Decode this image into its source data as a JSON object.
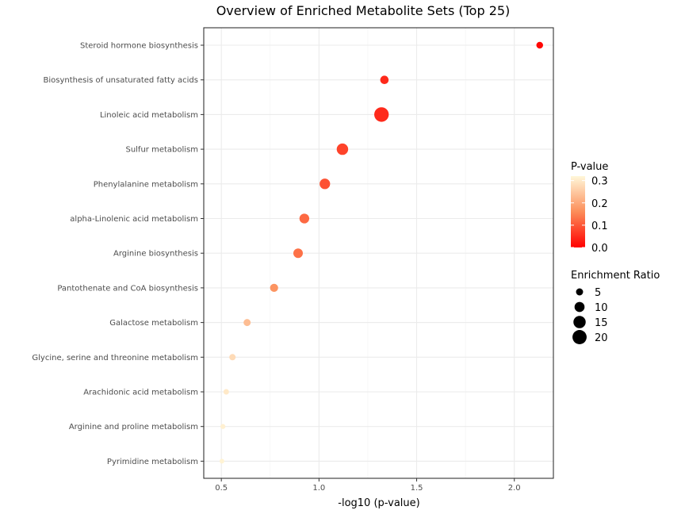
{
  "chart_data": {
    "type": "scatter",
    "title": "Overview of Enriched Metabolite Sets (Top 25)",
    "xlabel": "-log10 (p-value)",
    "ylabel": "",
    "xlim": [
      0.41,
      2.2
    ],
    "x_ticks": [
      "0.5",
      "1.0",
      "1.5",
      "2.0"
    ],
    "x_tick_values": [
      0.5,
      1.0,
      1.5,
      2.0
    ],
    "grid": true,
    "points": [
      {
        "category": "Steroid hormone biosynthesis",
        "x": 2.13,
        "p_value": 0.0074,
        "enrichment_ratio": 4.5
      },
      {
        "category": "Biosynthesis of unsaturated fatty acids",
        "x": 1.335,
        "p_value": 0.046,
        "enrichment_ratio": 7.0
      },
      {
        "category": "Linoleic acid metabolism",
        "x": 1.32,
        "p_value": 0.048,
        "enrichment_ratio": 21.0
      },
      {
        "category": "Sulfur metabolism",
        "x": 1.12,
        "p_value": 0.076,
        "enrichment_ratio": 13.0
      },
      {
        "category": "Phenylalanine metabolism",
        "x": 1.03,
        "p_value": 0.093,
        "enrichment_ratio": 11.0
      },
      {
        "category": "alpha-Linolenic acid metabolism",
        "x": 0.925,
        "p_value": 0.119,
        "enrichment_ratio": 9.5
      },
      {
        "category": "Arginine biosynthesis",
        "x": 0.893,
        "p_value": 0.128,
        "enrichment_ratio": 9.0
      },
      {
        "category": "Pantothenate and CoA biosynthesis",
        "x": 0.77,
        "p_value": 0.17,
        "enrichment_ratio": 6.5
      },
      {
        "category": "Galactose metabolism",
        "x": 0.632,
        "p_value": 0.233,
        "enrichment_ratio": 5.0
      },
      {
        "category": "Glycine, serine and threonine metabolism",
        "x": 0.557,
        "p_value": 0.277,
        "enrichment_ratio": 4.0
      },
      {
        "category": "Arachidonic acid metabolism",
        "x": 0.525,
        "p_value": 0.299,
        "enrichment_ratio": 3.0
      },
      {
        "category": "Arginine and proline metabolism",
        "x": 0.508,
        "p_value": 0.31,
        "enrichment_ratio": 2.5
      },
      {
        "category": "Pyrimidine metabolism",
        "x": 0.503,
        "p_value": 0.314,
        "enrichment_ratio": 2.2
      }
    ],
    "color_scale": {
      "title": "P-value",
      "ticks": [
        "0.3",
        "0.2",
        "0.1",
        "0.0"
      ],
      "tick_values": [
        0.3,
        0.2,
        0.1,
        0.0
      ],
      "range": [
        0.0,
        0.32
      ],
      "low_color": "#ff0000",
      "mid_color": "#fc8d59",
      "high_color": "#fff7d9"
    },
    "size_scale": {
      "title": "Enrichment Ratio",
      "ticks": [
        "5",
        "10",
        "15",
        "20"
      ],
      "tick_values": [
        5,
        10,
        15,
        20
      ],
      "color": "#000000"
    },
    "panel_border_color": "#333333"
  }
}
